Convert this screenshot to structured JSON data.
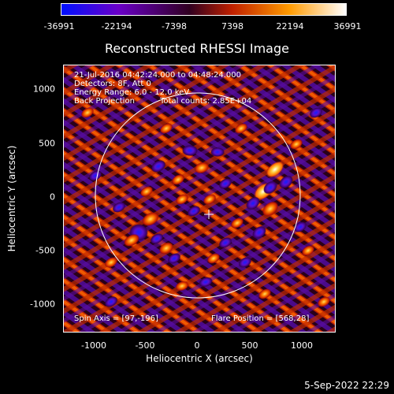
{
  "plot": {
    "title": "Reconstructed RHESSI Image",
    "xlabel": "Heliocentric X (arcsec)",
    "ylabel": "Heliocentric Y (arcsec)",
    "x_ticks": [
      "-1000",
      "-500",
      "0",
      "500",
      "1000"
    ],
    "y_ticks": [
      "1000",
      "500",
      "0",
      "-500",
      "-1000"
    ]
  },
  "colorbar": {
    "ticks": [
      "-36991",
      "-22194",
      "-7398",
      "7398",
      "22194",
      "36991"
    ],
    "colors": [
      "#0010ff",
      "#6a00c8",
      "#300020",
      "#c02000",
      "#ff9a00",
      "#ffffff"
    ]
  },
  "annotations": {
    "time_range": "21-Jul-2016 04:42:24.000 to 04:48:24.000",
    "detectors": "Detectors: 8F, Att 0",
    "energy": "Energy Range: 6.0 - 12.0 keV",
    "method": "Back Projection",
    "counts": "Total counts: 2.85E+04",
    "spin_axis": "Spin Axis = [97,-196]",
    "flare_position": "Flare Position = [568,28]"
  },
  "footer": {
    "timestamp": "5-Sep-2022 22:29"
  }
}
